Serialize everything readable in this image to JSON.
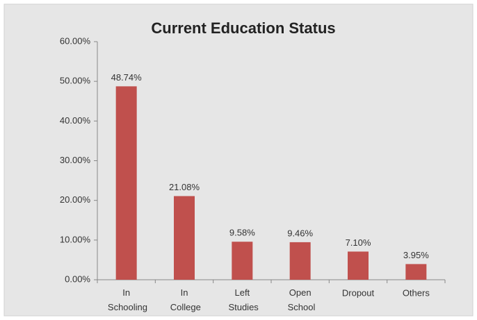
{
  "chart_data": {
    "type": "bar",
    "title": "Current Education Status",
    "categories": [
      "In Schooling",
      "In College",
      "Left Studies",
      "Open School",
      "Dropout",
      "Others"
    ],
    "values": [
      48.74,
      21.08,
      9.58,
      9.46,
      7.1,
      3.95
    ],
    "value_labels": [
      "48.74%",
      "21.08%",
      "9.58%",
      "9.46%",
      "7.10%",
      "3.95%"
    ],
    "color": "#c0504d",
    "ylim": [
      0,
      60
    ],
    "yticks": [
      {
        "value": 0,
        "label": "0.00%"
      },
      {
        "value": 10,
        "label": "10.00%"
      },
      {
        "value": 20,
        "label": "20.00%"
      },
      {
        "value": 30,
        "label": "30.00%"
      },
      {
        "value": 40,
        "label": "40.00%"
      },
      {
        "value": 50,
        "label": "50.00%"
      },
      {
        "value": 60,
        "label": "60.00%"
      }
    ]
  }
}
